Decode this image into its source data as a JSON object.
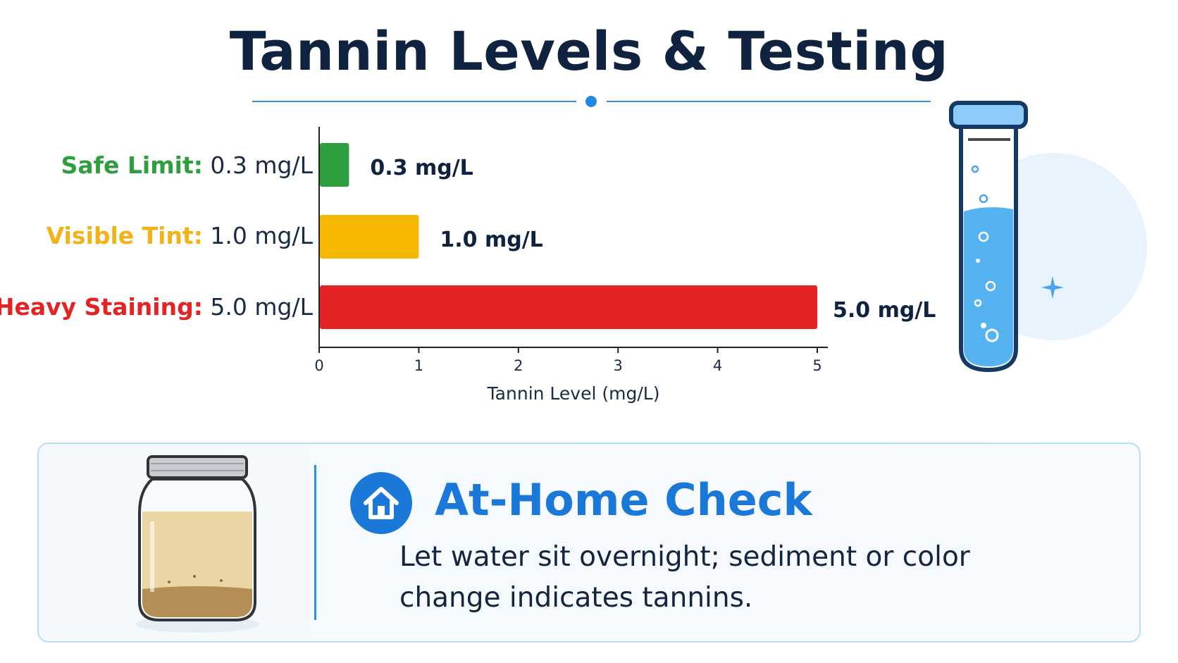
{
  "title": "Tannin Levels & Testing",
  "chart_data": {
    "type": "bar",
    "orientation": "horizontal",
    "categories": [
      "Safe Limit:",
      "Visible Tint:",
      "Heavy Staining:"
    ],
    "category_values_text": [
      "0.3 mg/L",
      "1.0 mg/L",
      "5.0 mg/L"
    ],
    "values": [
      0.3,
      1.0,
      5.0
    ],
    "value_labels": [
      "0.3 mg/L",
      "1.0 mg/L",
      "5.0 mg/L"
    ],
    "colors": [
      "#2e9e3e",
      "#f5b700",
      "#e42424"
    ],
    "label_colors": [
      "#2e9e3e",
      "#f2b21a",
      "#e42424"
    ],
    "xlabel": "Tannin Level (mg/L)",
    "xlim": [
      0,
      5
    ],
    "xticks": [
      0,
      1,
      2,
      3,
      4,
      5
    ],
    "grid": false
  },
  "panel": {
    "title": "At-Home Check",
    "description": "Let water sit overnight; sediment or color change indicates tannins.",
    "icon": "house-icon"
  },
  "illustrations": {
    "tube": "test-tube-icon",
    "jar": "water-jar-icon"
  }
}
